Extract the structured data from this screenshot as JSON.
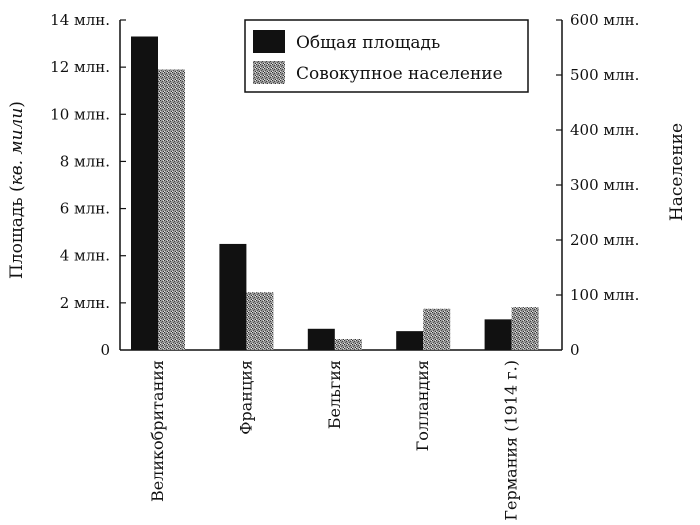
{
  "chart_data": {
    "type": "bar",
    "categories": [
      "Великобритания",
      "Франция",
      "Бельгия",
      "Голландия",
      "Германия (1914 г.)"
    ],
    "series": [
      {
        "name": "Общая площадь",
        "axis": "left",
        "values": [
          13.3,
          4.5,
          0.9,
          0.8,
          1.3
        ],
        "color": "#111111",
        "pattern": "solid"
      },
      {
        "name": "Совокупное население",
        "axis": "right",
        "values": [
          510,
          105,
          20,
          75,
          78
        ],
        "color": "#666666",
        "pattern": "stipple"
      }
    ],
    "y_left": {
      "label_main": "Площадь",
      "label_italic": "кв. мили",
      "ylim": [
        0,
        14
      ],
      "ticks": [
        0,
        2,
        4,
        6,
        8,
        10,
        12,
        14
      ],
      "tick_labels": [
        "0",
        "2 млн.",
        "4 млн.",
        "6 млн.",
        "8 млн.",
        "10 млн.",
        "12 млн.",
        "14 млн."
      ],
      "unit": "млн."
    },
    "y_right": {
      "label": "Население",
      "ylim": [
        0,
        600
      ],
      "ticks": [
        0,
        100,
        200,
        300,
        400,
        500,
        600
      ],
      "tick_labels": [
        "0",
        "100 млн.",
        "200 млн.",
        "300 млн.",
        "400 млн.",
        "500 млн.",
        "600 млн."
      ]
    },
    "legend": {
      "placement": "top-right",
      "entries": [
        "Общая площадь",
        "Совокупное население"
      ]
    },
    "grid": false
  }
}
